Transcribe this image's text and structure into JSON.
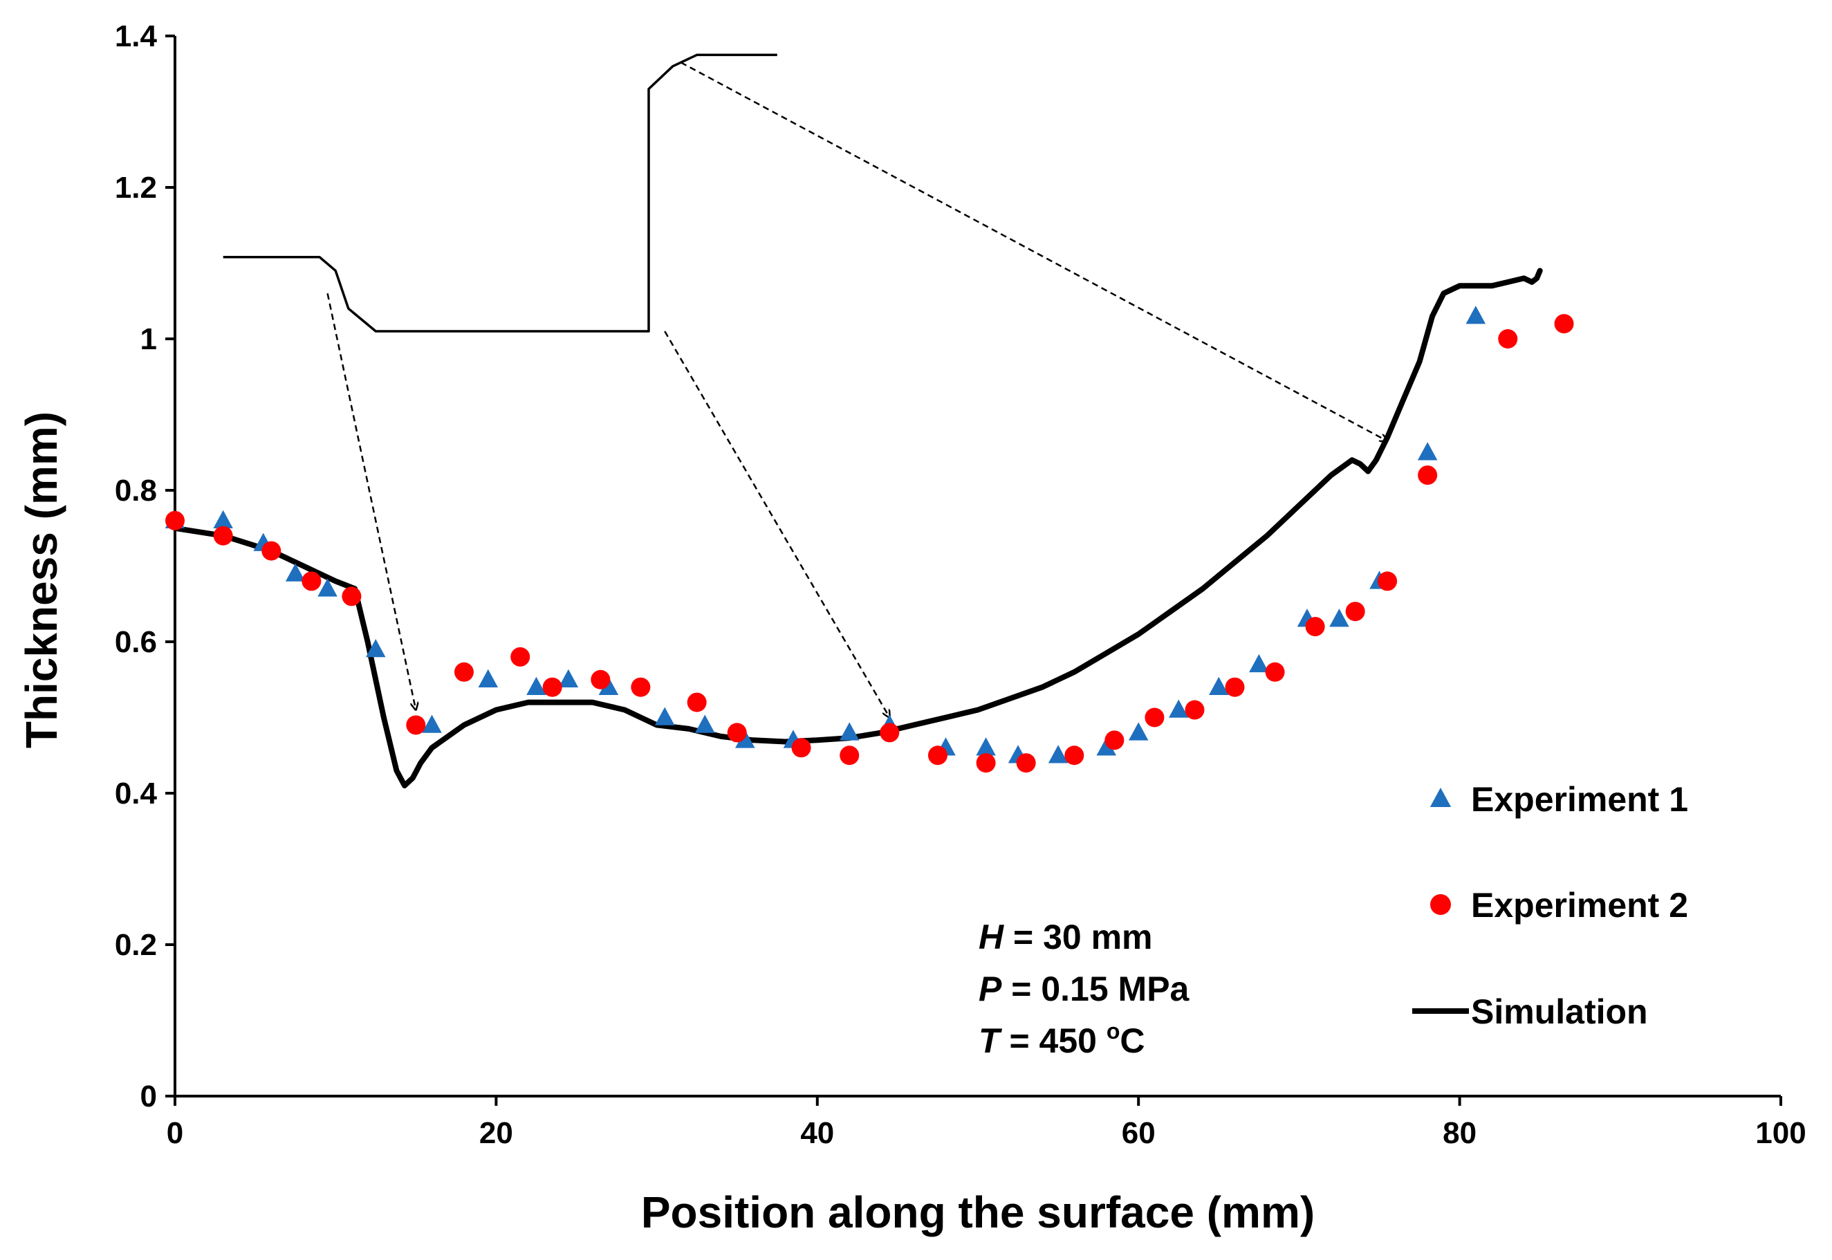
{
  "chart_data": {
    "type": "scatter",
    "xlabel": "Position along the surface (mm)",
    "ylabel": "Thickness (mm)",
    "xlim": [
      0,
      100
    ],
    "ylim": [
      0,
      1.4
    ],
    "xticks": [
      0,
      20,
      40,
      60,
      80,
      100
    ],
    "yticks": [
      0,
      0.2,
      0.4,
      0.6,
      0.8,
      1,
      1.2,
      1.4
    ],
    "ytick_labels": [
      "0",
      "0.2",
      "0.4",
      "0.6",
      "0.8",
      "1",
      "1.2",
      "1.4"
    ],
    "grid": false,
    "legend_position": "right",
    "colors": {
      "experiment1": "#1f6fbf",
      "experiment2": "#ff0000",
      "simulation": "#000000"
    },
    "series": [
      {
        "name": "Experiment 1",
        "marker": "triangle",
        "x": [
          0,
          3,
          5.5,
          7.5,
          9.5,
          12.5,
          16,
          19.5,
          22.5,
          24.5,
          27,
          30.5,
          33,
          35.5,
          38.5,
          42,
          44.5,
          48,
          50.5,
          52.5,
          55,
          58,
          60,
          62.5,
          65,
          67.5,
          70.5,
          72.5,
          75,
          78,
          81
        ],
        "values": [
          0.76,
          0.76,
          0.73,
          0.69,
          0.67,
          0.59,
          0.49,
          0.55,
          0.54,
          0.55,
          0.54,
          0.5,
          0.49,
          0.47,
          0.47,
          0.48,
          0.49,
          0.46,
          0.46,
          0.45,
          0.45,
          0.46,
          0.48,
          0.51,
          0.54,
          0.57,
          0.63,
          0.63,
          0.68,
          0.85,
          1.03
        ]
      },
      {
        "name": "Experiment 2",
        "marker": "circle",
        "x": [
          0,
          3,
          6,
          8.5,
          11,
          15,
          18,
          21.5,
          23.5,
          26.5,
          29,
          32.5,
          35,
          39,
          42,
          44.5,
          47.5,
          50.5,
          53,
          56,
          58.5,
          61,
          63.5,
          66,
          68.5,
          71,
          73.5,
          75.5,
          78,
          83,
          86.5
        ],
        "values": [
          0.76,
          0.74,
          0.72,
          0.68,
          0.66,
          0.49,
          0.56,
          0.58,
          0.54,
          0.55,
          0.54,
          0.52,
          0.48,
          0.46,
          0.45,
          0.48,
          0.45,
          0.44,
          0.44,
          0.45,
          0.47,
          0.5,
          0.51,
          0.54,
          0.56,
          0.62,
          0.64,
          0.68,
          0.82,
          1.0,
          1.02
        ]
      },
      {
        "name": "Simulation",
        "marker": "line",
        "x": [
          0,
          3,
          6,
          8,
          10,
          11.2,
          12,
          13,
          13.8,
          14.3,
          14.8,
          15.3,
          16,
          18,
          20,
          22,
          24,
          26,
          28,
          30,
          32,
          34,
          36,
          38,
          40,
          42,
          44,
          46,
          48,
          50,
          52,
          54,
          56,
          58,
          60,
          62,
          64,
          66,
          68,
          70,
          72,
          73.3,
          73.8,
          74.3,
          74.8,
          75.5,
          76.5,
          77.5,
          78.3,
          79,
          80,
          81,
          82,
          83,
          84,
          84.5,
          84.8,
          85
        ],
        "values": [
          0.75,
          0.74,
          0.72,
          0.7,
          0.68,
          0.67,
          0.6,
          0.5,
          0.43,
          0.41,
          0.42,
          0.44,
          0.46,
          0.49,
          0.51,
          0.52,
          0.52,
          0.52,
          0.51,
          0.49,
          0.485,
          0.475,
          0.47,
          0.468,
          0.47,
          0.473,
          0.48,
          0.49,
          0.5,
          0.51,
          0.525,
          0.54,
          0.56,
          0.585,
          0.61,
          0.64,
          0.67,
          0.705,
          0.74,
          0.78,
          0.82,
          0.84,
          0.835,
          0.825,
          0.84,
          0.87,
          0.92,
          0.97,
          1.03,
          1.06,
          1.07,
          1.07,
          1.07,
          1.075,
          1.08,
          1.075,
          1.08,
          1.09
        ]
      }
    ],
    "legend": [
      "Experiment 1",
      "Experiment 2",
      "Simulation"
    ],
    "annotations": {
      "params": [
        {
          "var": "H",
          "value": " = 30 mm"
        },
        {
          "var": "P",
          "value": " = 0.15 MPa"
        },
        {
          "var": "T",
          "value": " = 450 ",
          "sup": "o",
          "unit": "C"
        }
      ],
      "profile_inset": {
        "description_points_x": [
          3,
          9,
          10,
          10.8,
          12.5,
          29.5,
          29.5,
          31,
          32.5,
          37.5
        ],
        "description_points_y": [
          1.108,
          1.108,
          1.09,
          1.04,
          1.01,
          1.01,
          1.33,
          1.36,
          1.375,
          1.375
        ]
      },
      "arrows": [
        {
          "from": [
            9.5,
            1.06
          ],
          "to": [
            15,
            0.51
          ]
        },
        {
          "from": [
            30.5,
            1.01
          ],
          "to": [
            44.5,
            0.5
          ]
        },
        {
          "from": [
            31.5,
            1.365
          ],
          "to": [
            75.5,
            0.865
          ]
        }
      ]
    }
  }
}
